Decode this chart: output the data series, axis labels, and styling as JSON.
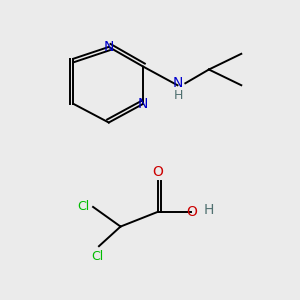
{
  "background_color": "#ebebeb",
  "figsize": [
    3.0,
    3.0
  ],
  "dpi": 100,
  "line_width": 1.4,
  "colors": {
    "bond": "#000000",
    "N": "#0000cc",
    "O": "#cc0000",
    "Cl": "#00bb00",
    "NH": "#507070",
    "H": "#507070"
  },
  "font_size": 9
}
